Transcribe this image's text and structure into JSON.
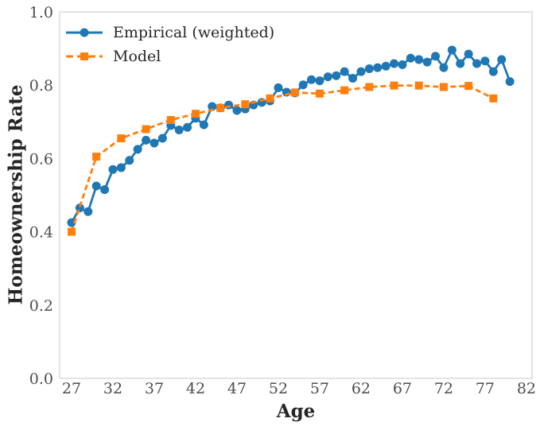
{
  "figure": {
    "background_color": "#ffffff",
    "spine_color": "#c8c8c8",
    "tick_text_color": "#4d4d4d",
    "label_text_color": "#262626"
  },
  "chart_data": {
    "type": "line",
    "title": "",
    "xlabel": "Age",
    "ylabel": "Homeownership Rate",
    "xlim": [
      25.56,
      82.68
    ],
    "ylim": [
      0.0,
      1.0
    ],
    "xticks": [
      27,
      32,
      37,
      42,
      47,
      52,
      57,
      62,
      67,
      72,
      77,
      82
    ],
    "ytick_labels": [
      "0.0",
      "0.2",
      "0.4",
      "0.6",
      "0.8",
      "1.0"
    ],
    "grid": false,
    "legend_position": "upper-left",
    "series": [
      {
        "name": "Empirical (weighted)",
        "color": "#1f77b4",
        "line_style": "solid",
        "marker": "circle",
        "x": [
          27,
          28,
          29,
          30,
          31,
          32,
          33,
          34,
          35,
          36,
          37,
          38,
          39,
          40,
          41,
          42,
          43,
          44,
          45,
          46,
          47,
          48,
          49,
          50,
          51,
          52,
          53,
          54,
          55,
          56,
          57,
          58,
          59,
          60,
          61,
          62,
          63,
          64,
          65,
          66,
          67,
          68,
          69,
          70,
          71,
          72,
          73,
          74,
          75,
          76,
          77,
          78,
          79,
          80
        ],
        "y": [
          0.425,
          0.465,
          0.455,
          0.525,
          0.515,
          0.57,
          0.575,
          0.595,
          0.625,
          0.65,
          0.642,
          0.655,
          0.69,
          0.678,
          0.685,
          0.71,
          0.692,
          0.742,
          0.738,
          0.746,
          0.731,
          0.735,
          0.746,
          0.753,
          0.757,
          0.793,
          0.781,
          0.779,
          0.801,
          0.815,
          0.812,
          0.823,
          0.826,
          0.837,
          0.819,
          0.837,
          0.845,
          0.848,
          0.852,
          0.859,
          0.856,
          0.874,
          0.87,
          0.863,
          0.879,
          0.848,
          0.896,
          0.859,
          0.885,
          0.859,
          0.866,
          0.837,
          0.87,
          0.81
        ]
      },
      {
        "name": "Model",
        "color": "#ff7f0e",
        "line_style": "dashed",
        "marker": "square",
        "x": [
          27,
          30,
          33,
          36,
          39,
          42,
          45,
          48,
          51,
          54,
          57,
          60,
          63,
          66,
          69,
          72,
          75,
          78
        ],
        "y": [
          0.4,
          0.605,
          0.655,
          0.68,
          0.705,
          0.722,
          0.738,
          0.748,
          0.764,
          0.78,
          0.777,
          0.786,
          0.795,
          0.799,
          0.799,
          0.795,
          0.798,
          0.764
        ]
      }
    ]
  }
}
